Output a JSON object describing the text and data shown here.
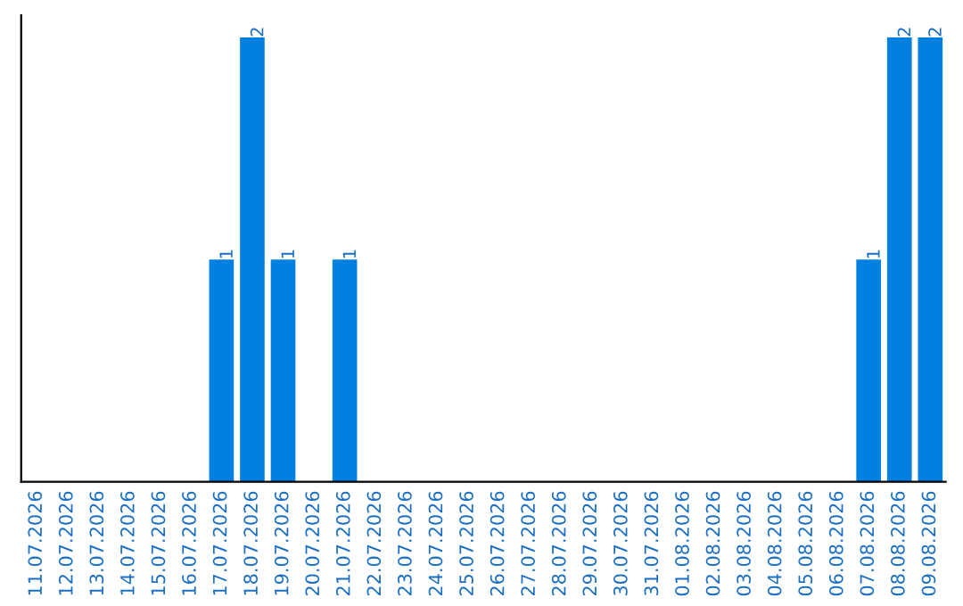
{
  "chart_data": {
    "type": "bar",
    "categories": [
      "11.07.2026",
      "12.07.2026",
      "13.07.2026",
      "14.07.2026",
      "15.07.2026",
      "16.07.2026",
      "17.07.2026",
      "18.07.2026",
      "19.07.2026",
      "20.07.2026",
      "21.07.2026",
      "22.07.2026",
      "23.07.2026",
      "24.07.2026",
      "25.07.2026",
      "26.07.2026",
      "27.07.2026",
      "28.07.2026",
      "29.07.2026",
      "30.07.2026",
      "31.07.2026",
      "01.08.2026",
      "02.08.2026",
      "03.08.2026",
      "04.08.2026",
      "05.08.2026",
      "06.08.2026",
      "07.08.2026",
      "08.08.2026",
      "09.08.2026"
    ],
    "values": [
      0,
      0,
      0,
      0,
      0,
      0,
      1,
      2,
      1,
      0,
      1,
      0,
      0,
      0,
      0,
      0,
      0,
      0,
      0,
      0,
      0,
      0,
      0,
      0,
      0,
      0,
      0,
      1,
      2,
      2
    ],
    "value_labels": [
      null,
      null,
      null,
      null,
      null,
      null,
      "1",
      "2",
      "1",
      null,
      "1",
      null,
      null,
      null,
      null,
      null,
      null,
      null,
      null,
      null,
      null,
      null,
      null,
      null,
      null,
      null,
      null,
      "1",
      "2",
      "2"
    ],
    "color": "#0080e0",
    "tick_labels": "x",
    "grid": false,
    "legend": false
  }
}
